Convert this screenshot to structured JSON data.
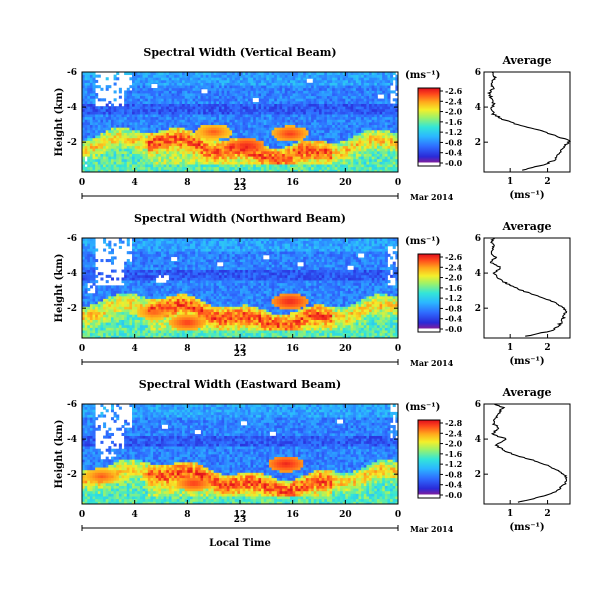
{
  "chart_data": [
    {
      "type": "heatmap",
      "title": "Spectral Width (Vertical Beam)",
      "ylabel": "Height (km)",
      "colorbar_label": "(ms⁻¹)",
      "x_ticks": [
        "0",
        "4",
        "8",
        "12",
        "16",
        "20",
        "0"
      ],
      "y_ticks": [
        "6",
        "4",
        "2"
      ],
      "xlim": [
        0,
        24
      ],
      "ylim": [
        0.3,
        6
      ],
      "day_label": "23",
      "date_label": "Mar 2014",
      "colorbar_ticks": [
        "2.6",
        "2.4",
        "2.0",
        "1.6",
        "1.2",
        "0.8",
        "0.4",
        "0.0"
      ],
      "colorbar_range": [
        0,
        2.8
      ],
      "profile": {
        "title": "Average",
        "xlabel": "(ms⁻¹)",
        "x_ticks": [
          "1",
          "2"
        ],
        "y_ticks": [
          "6",
          "4",
          "2"
        ],
        "xlim": [
          0.3,
          2.6
        ],
        "ylim": [
          0.3,
          6
        ],
        "height": [
          0.4,
          0.7,
          1.0,
          1.3,
          1.6,
          1.9,
          2.1,
          2.3,
          2.6,
          3.0,
          3.3,
          3.6,
          3.9,
          4.2,
          4.5,
          4.8,
          5.1,
          5.4,
          5.7,
          6.0
        ],
        "width": [
          1.3,
          1.9,
          2.2,
          2.3,
          2.4,
          2.5,
          2.6,
          2.3,
          1.9,
          1.2,
          0.8,
          0.55,
          0.5,
          0.55,
          0.5,
          0.45,
          0.55,
          0.5,
          0.6,
          0.55
        ]
      },
      "white_gaps": [
        [
          1.0,
          3.3,
          4.0,
          6.0
        ],
        [
          3.0,
          3.8,
          5.0,
          5.9
        ],
        [
          0.2,
          0.4,
          0.6,
          1.2
        ]
      ],
      "white_bins": [
        [
          5.5,
          5.2
        ],
        [
          9.3,
          4.9
        ],
        [
          17.3,
          5.5
        ],
        [
          22.7,
          4.6
        ],
        [
          13.2,
          4.4
        ]
      ],
      "right_gaps": [
        [
          23.4,
          24.0,
          4.2,
          6.0
        ]
      ],
      "strong_cells": [
        [
          12.5,
          1.8
        ],
        [
          15.8,
          2.5
        ],
        [
          10.0,
          2.6
        ]
      ],
      "strong_cell_values": [
        2.7,
        2.6,
        2.5
      ],
      "seed": 17
    },
    {
      "type": "heatmap",
      "title": "Spectral Width (Northward Beam)",
      "ylabel": "Height (km)",
      "colorbar_label": "(ms⁻¹)",
      "x_ticks": [
        "0",
        "4",
        "8",
        "12",
        "16",
        "20",
        "0"
      ],
      "y_ticks": [
        "6",
        "4",
        "2"
      ],
      "xlim": [
        0,
        24
      ],
      "ylim": [
        0.3,
        6
      ],
      "day_label": "23",
      "date_label": "Mar 2014",
      "colorbar_ticks": [
        "2.6",
        "2.4",
        "2.0",
        "1.6",
        "1.2",
        "0.8",
        "0.4",
        "0.0"
      ],
      "colorbar_range": [
        0,
        2.8
      ],
      "profile": {
        "title": "Average",
        "xlabel": "(ms⁻¹)",
        "x_ticks": [
          "1",
          "2"
        ],
        "y_ticks": [
          "6",
          "4",
          "2"
        ],
        "xlim": [
          0.3,
          2.6
        ],
        "ylim": [
          0.3,
          6
        ],
        "height": [
          0.4,
          0.7,
          1.0,
          1.3,
          1.6,
          1.9,
          2.2,
          2.5,
          2.8,
          3.1,
          3.4,
          3.7,
          4.0,
          4.3,
          4.6,
          4.9,
          5.2,
          5.5,
          5.8,
          6.0
        ],
        "width": [
          1.4,
          2.1,
          2.3,
          2.4,
          2.45,
          2.5,
          2.3,
          2.0,
          1.6,
          1.2,
          0.9,
          0.7,
          0.55,
          0.75,
          0.5,
          0.6,
          0.5,
          0.55,
          0.5,
          0.55
        ]
      },
      "white_gaps": [
        [
          1.0,
          3.3,
          3.3,
          6.0
        ],
        [
          3.0,
          3.8,
          4.6,
          6.0
        ],
        [
          0.5,
          1.0,
          2.9,
          3.5
        ],
        [
          5.6,
          6.5,
          3.4,
          3.9
        ]
      ],
      "white_bins": [
        [
          7.0,
          4.8
        ],
        [
          10.5,
          4.5
        ],
        [
          20.4,
          4.3
        ],
        [
          14.0,
          4.9
        ],
        [
          16.6,
          4.5
        ],
        [
          21.2,
          5.0
        ]
      ],
      "right_gaps": [
        [
          23.3,
          24.0,
          3.3,
          5.6
        ]
      ],
      "strong_cells": [
        [
          15.8,
          2.4
        ],
        [
          8.0,
          1.2
        ],
        [
          5.5,
          1.8
        ]
      ],
      "strong_cell_values": [
        2.7,
        2.6,
        2.5
      ],
      "seed": 29
    },
    {
      "type": "heatmap",
      "title": "Spectral Width (Eastward Beam)",
      "ylabel": "Height (km)",
      "xlabel": "Local Time",
      "colorbar_label": "(ms⁻¹)",
      "x_ticks": [
        "0",
        "4",
        "8",
        "12",
        "16",
        "20",
        "0"
      ],
      "y_ticks": [
        "6",
        "4",
        "2"
      ],
      "xlim": [
        0,
        24
      ],
      "ylim": [
        0.3,
        6
      ],
      "day_label": "23",
      "date_label": "Mar 2014",
      "colorbar_ticks": [
        "2.8",
        "2.4",
        "2.0",
        "1.6",
        "1.2",
        "0.8",
        "0.4",
        "0.0"
      ],
      "colorbar_range": [
        0,
        2.8
      ],
      "profile": {
        "title": "Average",
        "xlabel": "(ms⁻¹)",
        "x_ticks": [
          "1",
          "2"
        ],
        "y_ticks": [
          "6",
          "4",
          "2"
        ],
        "xlim": [
          0.3,
          2.6
        ],
        "ylim": [
          0.3,
          6
        ],
        "height": [
          0.4,
          0.7,
          1.0,
          1.3,
          1.6,
          1.9,
          2.2,
          2.5,
          2.8,
          3.1,
          3.4,
          3.7,
          4.0,
          4.3,
          4.6,
          4.9,
          5.2,
          5.5,
          5.8,
          6.0
        ],
        "width": [
          1.2,
          1.8,
          2.2,
          2.4,
          2.5,
          2.5,
          2.3,
          2.0,
          1.6,
          1.1,
          0.8,
          0.6,
          0.9,
          0.5,
          0.7,
          0.55,
          0.6,
          0.7,
          0.8,
          0.6
        ]
      },
      "white_gaps": [
        [
          1.0,
          3.3,
          3.4,
          6.0
        ],
        [
          3.0,
          3.8,
          4.6,
          6.0
        ],
        [
          1.5,
          2.5,
          2.8,
          3.4
        ]
      ],
      "white_bins": [
        [
          8.8,
          4.4
        ],
        [
          12.3,
          4.9
        ],
        [
          14.5,
          4.3
        ],
        [
          6.3,
          4.7
        ],
        [
          19.6,
          5.0
        ]
      ],
      "right_gaps": [
        [
          23.4,
          24.0,
          4.0,
          6.0
        ]
      ],
      "strong_cells": [
        [
          15.5,
          2.6
        ],
        [
          8.5,
          1.5
        ],
        [
          1.5,
          1.9
        ]
      ],
      "strong_cell_values": [
        2.7,
        2.6,
        2.5
      ],
      "seed": 41
    }
  ]
}
